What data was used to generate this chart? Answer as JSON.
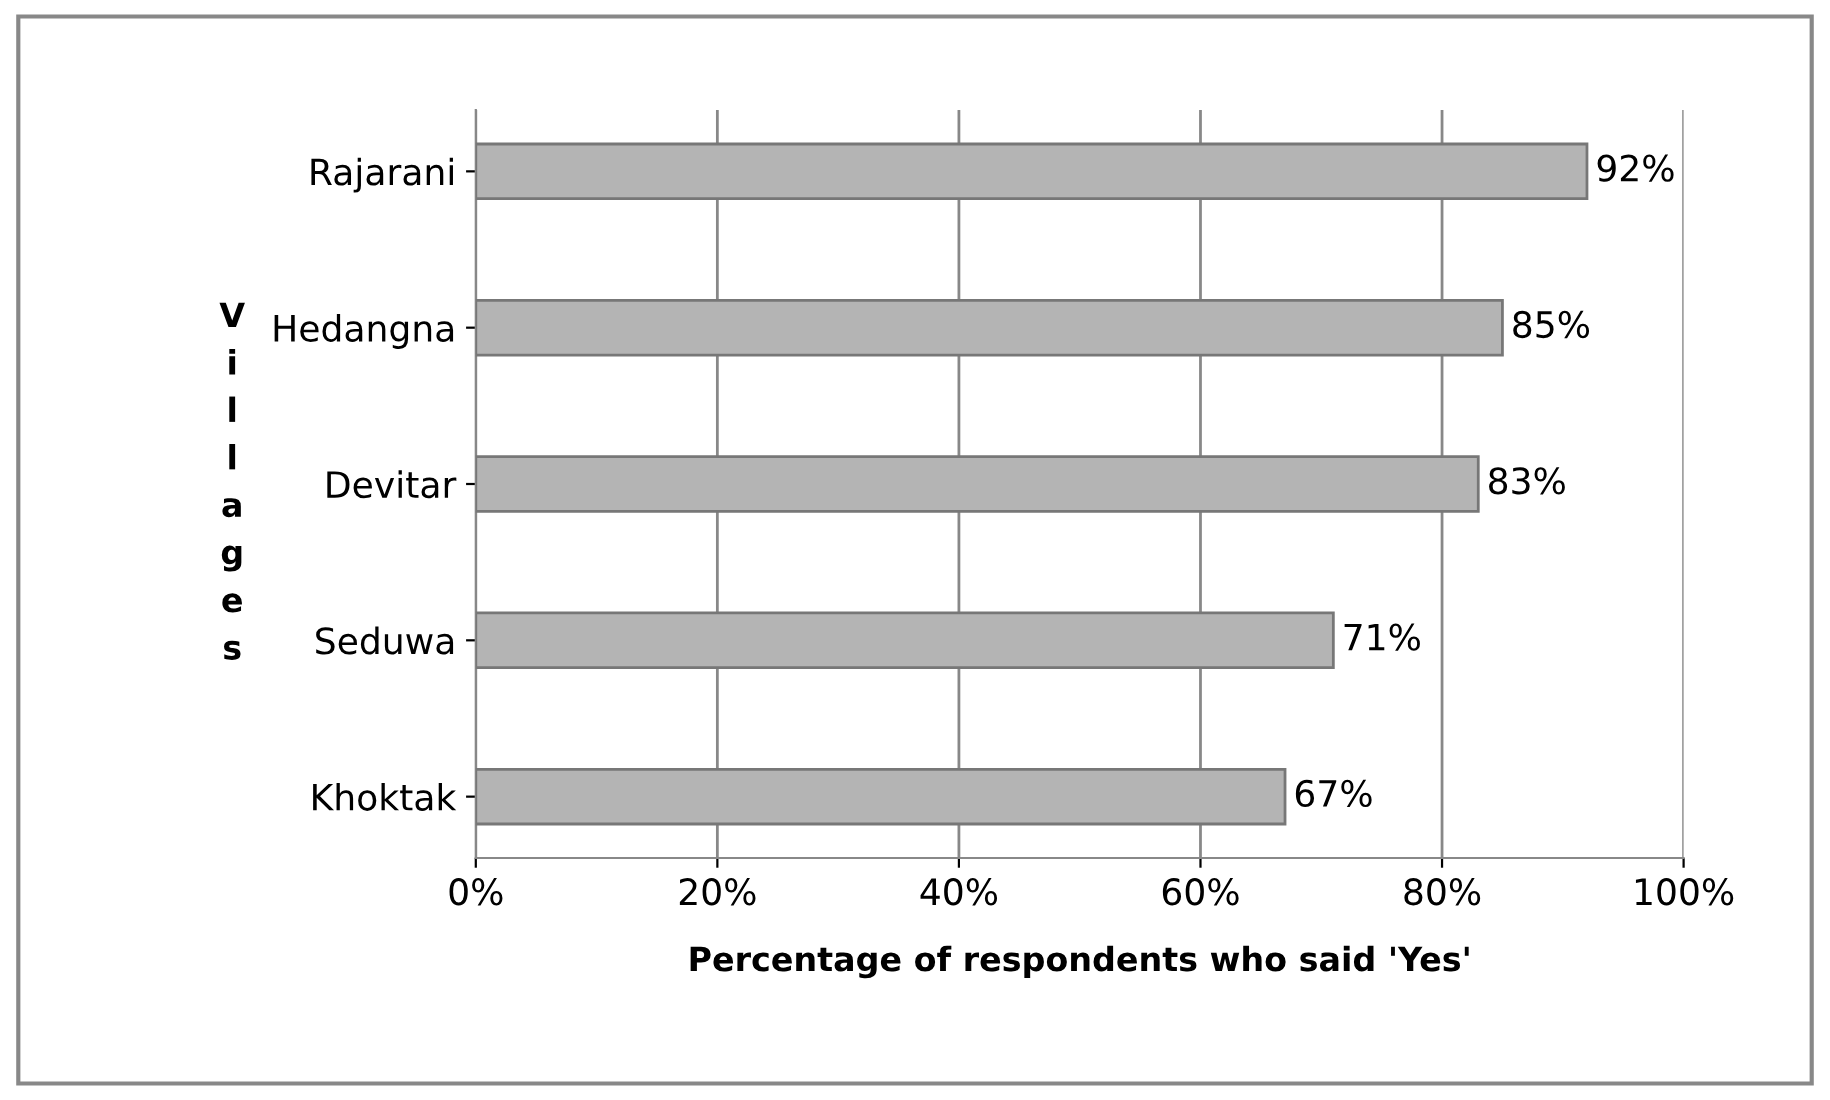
{
  "chart_data": {
    "type": "bar",
    "orientation": "horizontal",
    "categories": [
      "Rajarani",
      "Hedangna",
      "Devitar",
      "Seduwa",
      "Khoktak"
    ],
    "values": [
      92,
      85,
      83,
      71,
      67
    ],
    "value_labels": [
      "92%",
      "85%",
      "83%",
      "71%",
      "67%"
    ],
    "color": "#b4b4b4",
    "xlabel": "Percentage of respondents who said 'Yes'",
    "ylabel": "Villages",
    "xlim": [
      0,
      100
    ],
    "xticks": [
      {
        "value": 0,
        "label": "0%"
      },
      {
        "value": 20,
        "label": "20%"
      },
      {
        "value": 40,
        "label": "40%"
      },
      {
        "value": 60,
        "label": "60%"
      },
      {
        "value": 80,
        "label": "80%"
      },
      {
        "value": 100,
        "label": "100%"
      }
    ],
    "grid": "x"
  }
}
